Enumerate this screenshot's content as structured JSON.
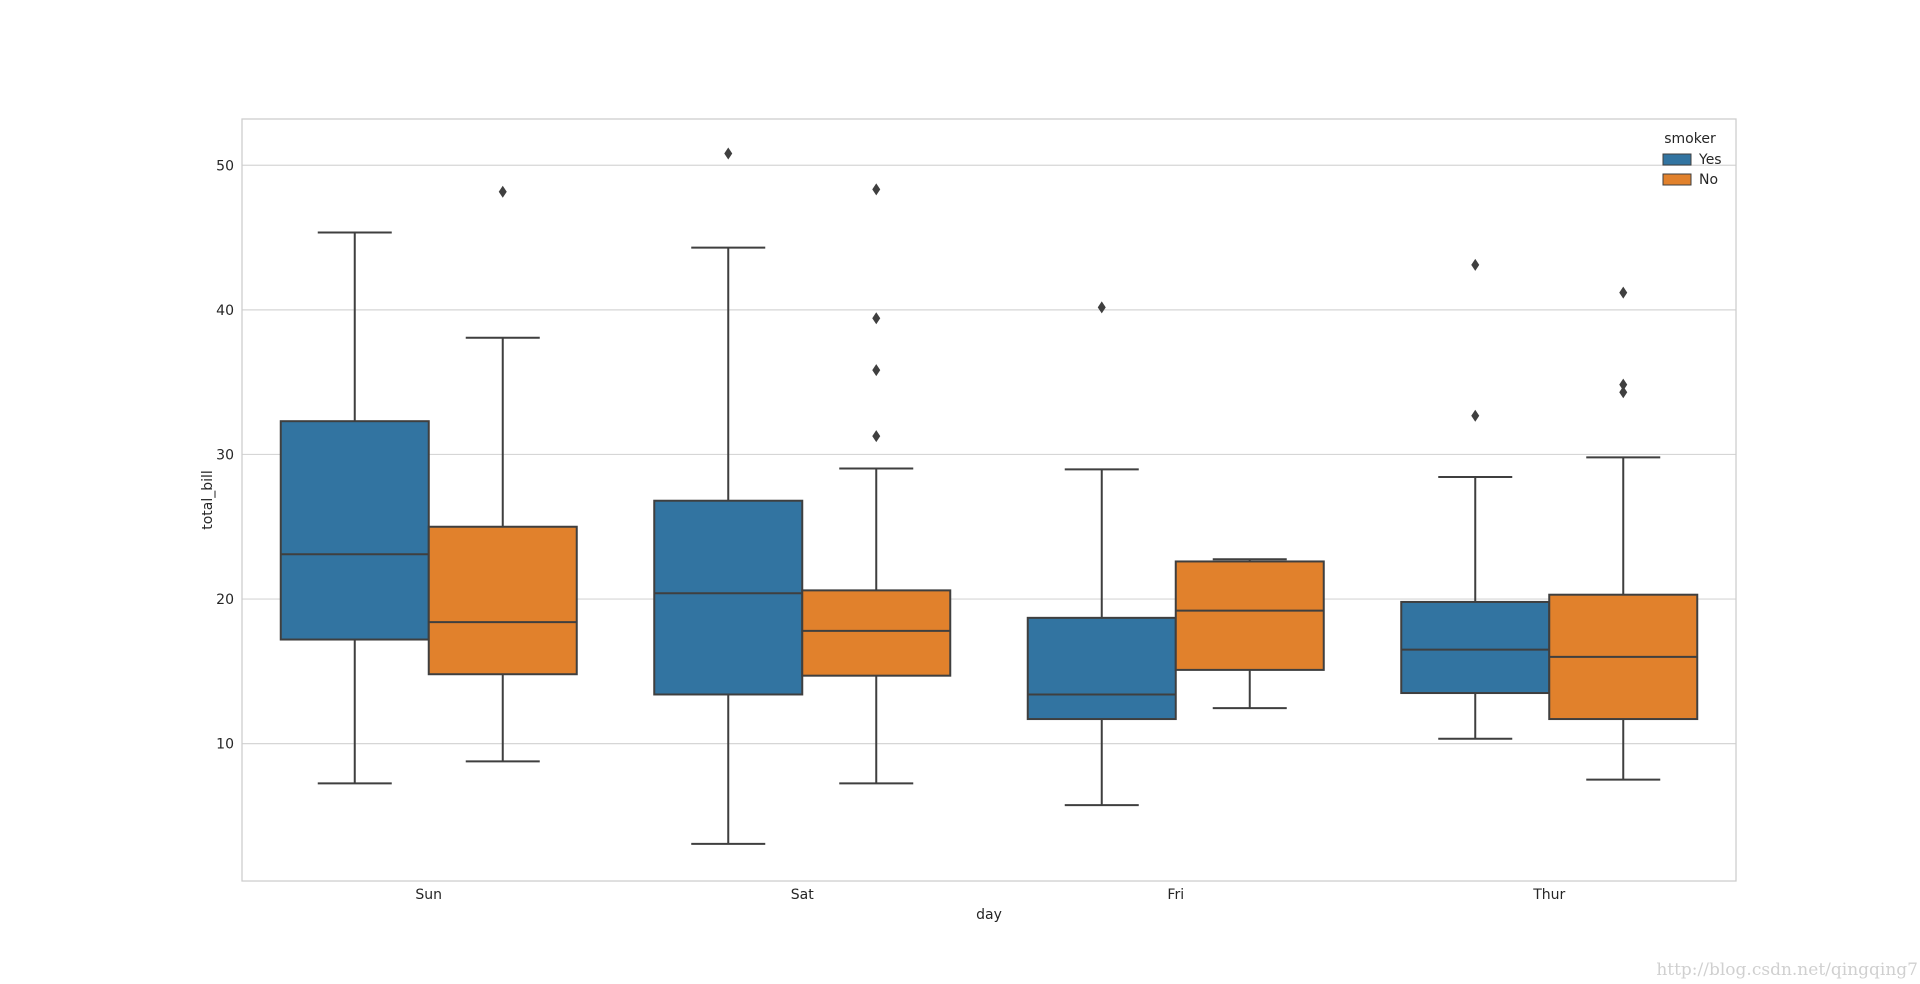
{
  "chart_data": {
    "type": "box",
    "xlabel": "day",
    "ylabel": "total_bill",
    "categories": [
      "Sun",
      "Sat",
      "Fri",
      "Thur"
    ],
    "ylim": [
      0.5,
      53.2
    ],
    "yticks": [
      10,
      20,
      30,
      40,
      50
    ],
    "grid": "horizontal",
    "legend": {
      "title": "smoker",
      "placement": "top-right"
    },
    "series": [
      {
        "name": "Yes",
        "color": "#3274a1",
        "boxes": [
          {
            "category": "Sun",
            "whisker_low": 7.25,
            "q1": 17.2,
            "median": 23.1,
            "q3": 32.3,
            "whisker_high": 45.35,
            "outliers": []
          },
          {
            "category": "Sat",
            "whisker_low": 3.07,
            "q1": 13.4,
            "median": 20.4,
            "q3": 26.8,
            "whisker_high": 44.3,
            "outliers": [
              50.81
            ]
          },
          {
            "category": "Fri",
            "whisker_low": 5.75,
            "q1": 11.7,
            "median": 13.4,
            "q3": 18.7,
            "whisker_high": 28.97,
            "outliers": [
              40.17
            ]
          },
          {
            "category": "Thur",
            "whisker_low": 10.34,
            "q1": 13.5,
            "median": 16.5,
            "q3": 19.8,
            "whisker_high": 28.44,
            "outliers": [
              32.68,
              43.11
            ]
          }
        ]
      },
      {
        "name": "No",
        "color": "#e1812c",
        "boxes": [
          {
            "category": "Sun",
            "whisker_low": 8.77,
            "q1": 14.8,
            "median": 18.4,
            "q3": 25.0,
            "whisker_high": 38.07,
            "outliers": [
              48.17
            ]
          },
          {
            "category": "Sat",
            "whisker_low": 7.25,
            "q1": 14.7,
            "median": 17.8,
            "q3": 20.6,
            "whisker_high": 29.03,
            "outliers": [
              31.27,
              35.83,
              39.42,
              48.33
            ]
          },
          {
            "category": "Fri",
            "whisker_low": 12.46,
            "q1": 15.1,
            "median": 19.2,
            "q3": 22.6,
            "whisker_high": 22.75,
            "outliers": []
          },
          {
            "category": "Thur",
            "whisker_low": 7.51,
            "q1": 11.7,
            "median": 16.0,
            "q3": 20.3,
            "whisker_high": 29.8,
            "outliers": [
              34.3,
              34.83,
              41.19
            ]
          }
        ]
      }
    ]
  },
  "watermark": "http://blog.csdn.net/qingqing7"
}
